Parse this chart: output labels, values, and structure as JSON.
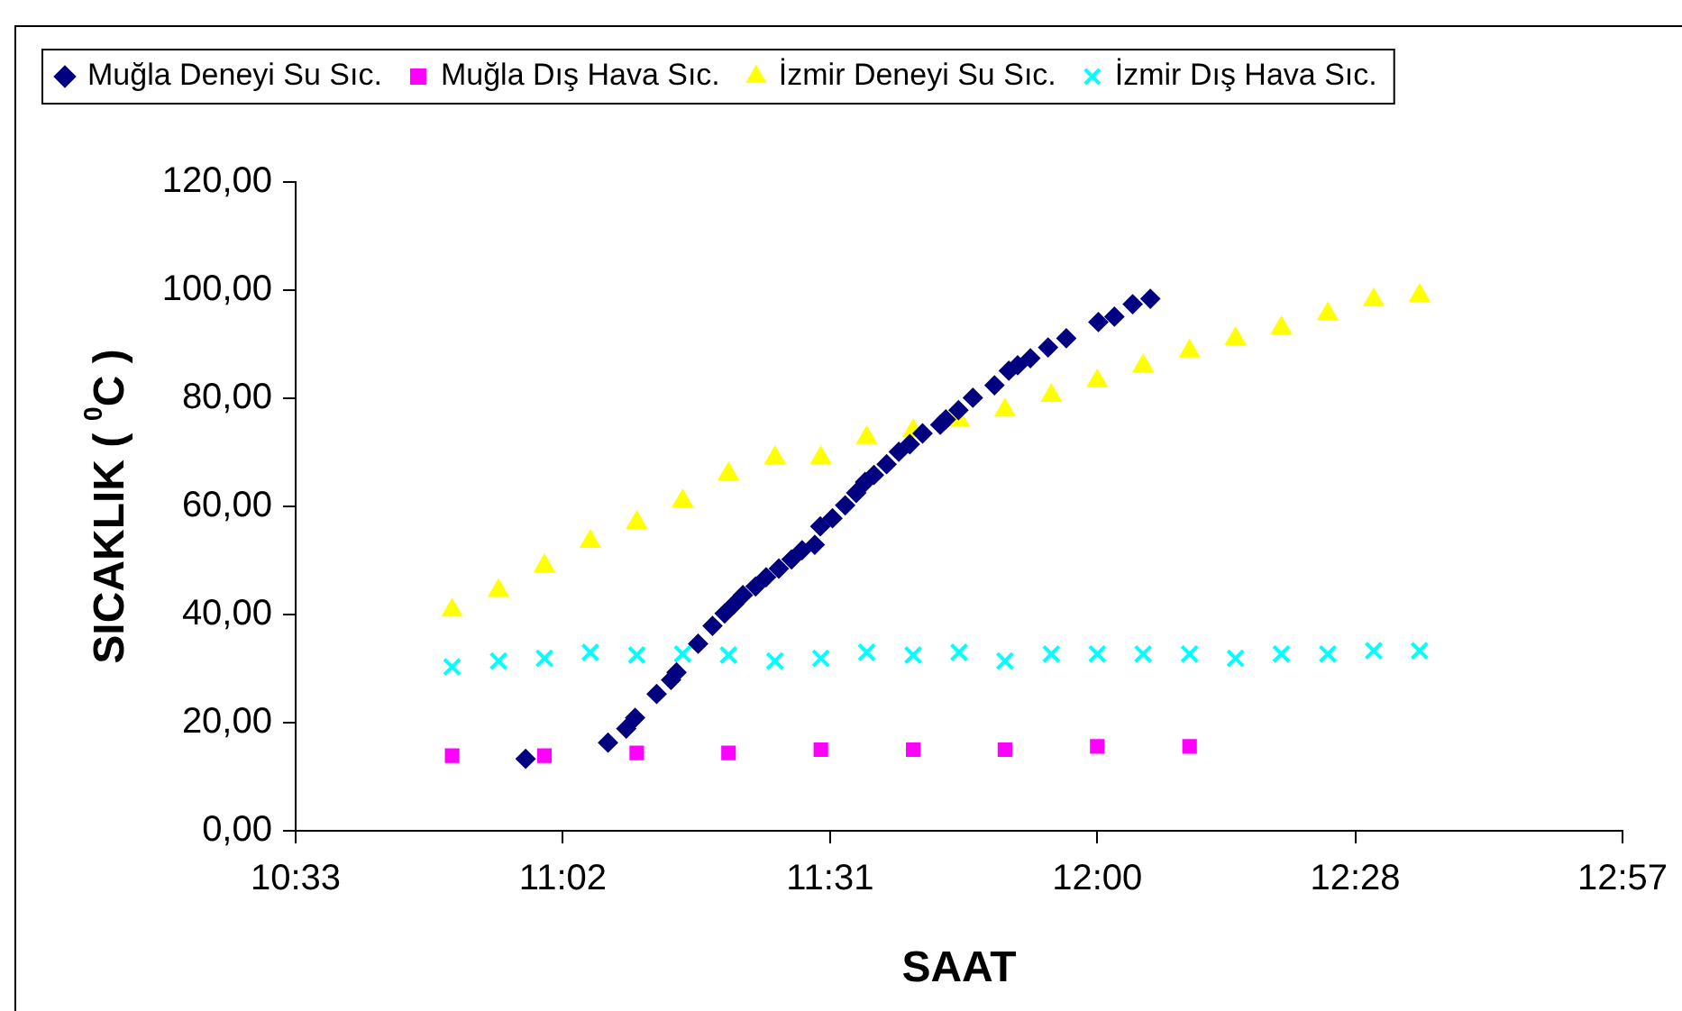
{
  "chart_data": {
    "type": "scatter",
    "xlabel": "SAAT",
    "ylabel": "SICAKLIK ( $^{0}$C )",
    "legend": "top",
    "grid": false,
    "xlim": [
      10.55,
      12.95
    ],
    "xticks": [
      {
        "value": 10.55,
        "label": "10:33"
      },
      {
        "value": 11.0333,
        "label": "11:02"
      },
      {
        "value": 11.5167,
        "label": "11:31"
      },
      {
        "value": 12.0,
        "label": "12:00"
      },
      {
        "value": 12.4667,
        "label": "12:28"
      },
      {
        "value": 12.95,
        "label": "12:57"
      }
    ],
    "ylim": [
      0,
      120
    ],
    "yticks": [
      {
        "value": 0,
        "label": "0,00"
      },
      {
        "value": 20,
        "label": "20,00"
      },
      {
        "value": 40,
        "label": "40,00"
      },
      {
        "value": 60,
        "label": "60,00"
      },
      {
        "value": 80,
        "label": "80,00"
      },
      {
        "value": 100,
        "label": "100,00"
      },
      {
        "value": 120,
        "label": "120,00"
      }
    ],
    "series": [
      {
        "name": "Muğla Deneyi Su Sıc.",
        "color": "#000080",
        "marker": "diamond",
        "x": [
          10.966,
          11.115,
          11.148,
          11.164,
          11.203,
          11.229,
          11.239,
          11.278,
          11.304,
          11.326,
          11.343,
          11.359,
          11.382,
          11.401,
          11.424,
          11.447,
          11.466,
          11.489,
          11.499,
          11.521,
          11.544,
          11.564,
          11.58,
          11.596,
          11.619,
          11.641,
          11.661,
          11.684,
          11.716,
          11.726,
          11.749,
          11.775,
          11.814,
          11.84,
          11.856,
          11.879,
          11.911,
          11.944,
          12.002,
          12.031,
          12.064,
          12.096
        ],
        "values": [
          13.3,
          16.3,
          18.9,
          20.9,
          25.3,
          27.9,
          29.3,
          34.6,
          37.9,
          40.2,
          41.9,
          43.6,
          45.2,
          46.9,
          48.5,
          50.2,
          51.9,
          52.9,
          56.3,
          57.8,
          60.2,
          62.5,
          64.5,
          65.8,
          67.8,
          70.1,
          71.5,
          73.5,
          75.1,
          76.1,
          77.8,
          80.1,
          82.4,
          85.1,
          86.1,
          87.4,
          89.4,
          91.1,
          94.1,
          95.1,
          97.4,
          98.4
        ]
      },
      {
        "name": "Muğla Dış Hava Sıc.",
        "color": "#ff00ff",
        "marker": "square",
        "x": [
          10.833,
          11.0,
          11.167,
          11.333,
          11.5,
          11.667,
          11.833,
          12.0,
          12.167
        ],
        "values": [
          13.9,
          13.9,
          14.4,
          14.4,
          15.0,
          15.0,
          15.0,
          15.6,
          15.6
        ]
      },
      {
        "name": "İzmir Deneyi Su Sıc.",
        "color": "#ffff00",
        "marker": "triangle",
        "x": [
          10.833,
          10.917,
          11.0,
          11.083,
          11.167,
          11.25,
          11.333,
          11.417,
          11.5,
          11.583,
          11.667,
          11.75,
          11.833,
          11.917,
          12.0,
          12.083,
          12.167,
          12.25,
          12.333,
          12.417,
          12.5,
          12.583
        ],
        "values": [
          40.8,
          44.4,
          49.0,
          53.5,
          57.0,
          61.0,
          66.0,
          69.0,
          69.0,
          72.7,
          74.0,
          76.0,
          77.8,
          80.5,
          83.2,
          86.0,
          88.7,
          91.0,
          93.0,
          95.6,
          98.2,
          99.0
        ]
      },
      {
        "name": "İzmir Dış Hava Sıc.",
        "color": "#00ffff",
        "marker": "cross",
        "x": [
          10.833,
          10.917,
          11.0,
          11.083,
          11.167,
          11.25,
          11.333,
          11.417,
          11.5,
          11.583,
          11.667,
          11.75,
          11.833,
          11.917,
          12.0,
          12.083,
          12.167,
          12.25,
          12.333,
          12.417,
          12.5,
          12.583
        ],
        "values": [
          30.3,
          31.4,
          31.9,
          33.0,
          32.5,
          32.7,
          32.5,
          31.4,
          31.9,
          33.0,
          32.5,
          33.0,
          31.4,
          32.7,
          32.7,
          32.7,
          32.7,
          31.9,
          32.7,
          32.7,
          33.3,
          33.3
        ]
      }
    ]
  }
}
